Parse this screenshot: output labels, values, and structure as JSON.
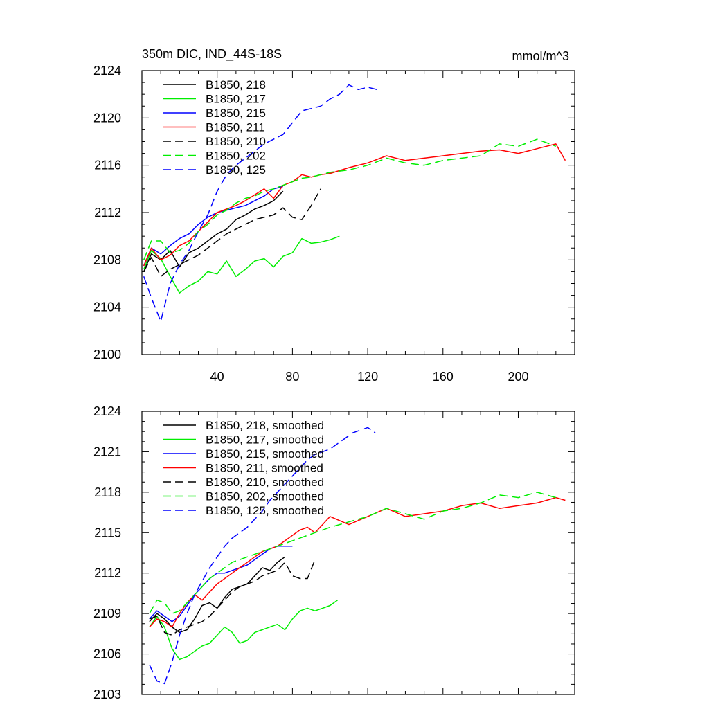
{
  "chart_data": [
    {
      "type": "line",
      "title_left": "350m DIC, IND_44S-18S",
      "title_right": "mmol/m^3",
      "xlim": [
        0,
        230
      ],
      "ylim": [
        2100,
        2124
      ],
      "x_ticks": [
        40,
        80,
        120,
        160,
        200
      ],
      "y_ticks": [
        2100,
        2104,
        2108,
        2112,
        2116,
        2120,
        2124
      ],
      "legend_position": "top-left",
      "grid": false,
      "series": [
        {
          "name": "B1850, 218",
          "color": "#000000",
          "dash": "solid",
          "x": [
            1,
            5,
            10,
            15,
            20,
            25,
            30,
            35,
            40,
            45,
            50,
            55,
            60,
            65,
            70,
            75
          ],
          "y": [
            2107.0,
            2108.5,
            2108.0,
            2108.8,
            2107.4,
            2108.6,
            2109.0,
            2109.6,
            2110.2,
            2110.6,
            2111.4,
            2111.8,
            2112.3,
            2112.6,
            2113.0,
            2113.8
          ]
        },
        {
          "name": "B1850, 217",
          "color": "#00ee00",
          "dash": "solid",
          "x": [
            1,
            5,
            10,
            15,
            20,
            25,
            30,
            35,
            40,
            45,
            50,
            55,
            60,
            65,
            70,
            75,
            80,
            85,
            90,
            95,
            100,
            105
          ],
          "y": [
            2107.2,
            2108.8,
            2108.1,
            2106.6,
            2105.2,
            2105.8,
            2106.2,
            2107.0,
            2106.8,
            2107.9,
            2106.6,
            2107.2,
            2107.9,
            2108.1,
            2107.4,
            2108.3,
            2108.6,
            2109.8,
            2109.4,
            2109.5,
            2109.7,
            2110.0
          ]
        },
        {
          "name": "B1850, 215",
          "color": "#0000ff",
          "dash": "solid",
          "x": [
            1,
            5,
            10,
            15,
            20,
            25,
            30,
            35,
            40,
            45,
            50,
            55,
            60,
            65,
            70,
            75
          ],
          "y": [
            2107.5,
            2109.0,
            2108.5,
            2109.2,
            2109.8,
            2110.2,
            2111.0,
            2111.6,
            2112.0,
            2112.2,
            2112.4,
            2112.6,
            2113.0,
            2113.4,
            2114.0,
            2114.2
          ]
        },
        {
          "name": "B1850, 211",
          "color": "#ff0000",
          "dash": "solid",
          "x": [
            1,
            5,
            10,
            15,
            20,
            25,
            30,
            35,
            40,
            45,
            50,
            55,
            60,
            65,
            70,
            75,
            80,
            85,
            90,
            95,
            100,
            110,
            120,
            130,
            140,
            150,
            160,
            170,
            180,
            190,
            200,
            210,
            220,
            225
          ],
          "y": [
            2107.5,
            2109.0,
            2108.0,
            2108.4,
            2109.2,
            2109.6,
            2110.4,
            2111.2,
            2112.0,
            2112.3,
            2112.6,
            2113.0,
            2113.5,
            2114.0,
            2113.2,
            2114.3,
            2114.6,
            2115.2,
            2115.0,
            2115.2,
            2115.3,
            2115.8,
            2116.2,
            2116.8,
            2116.4,
            2116.6,
            2116.8,
            2117.0,
            2117.2,
            2117.3,
            2117.0,
            2117.4,
            2117.8,
            2116.4
          ]
        },
        {
          "name": "B1850, 210",
          "color": "#000000",
          "dash": "dashed",
          "x": [
            1,
            5,
            10,
            15,
            20,
            25,
            30,
            35,
            40,
            45,
            50,
            55,
            60,
            65,
            70,
            75,
            80,
            85,
            90,
            95
          ],
          "y": [
            2107.0,
            2108.2,
            2106.6,
            2107.2,
            2107.6,
            2108.0,
            2108.4,
            2109.0,
            2109.6,
            2110.2,
            2110.6,
            2111.0,
            2111.4,
            2111.6,
            2111.8,
            2112.4,
            2111.6,
            2111.4,
            2112.6,
            2114.0
          ]
        },
        {
          "name": "B1850, 202",
          "color": "#00ee00",
          "dash": "dashed",
          "x": [
            1,
            5,
            10,
            15,
            20,
            25,
            30,
            35,
            40,
            45,
            50,
            55,
            60,
            65,
            70,
            75,
            80,
            85,
            90,
            95,
            100,
            110,
            120,
            130,
            140,
            150,
            160,
            170,
            180,
            190,
            200,
            210,
            220
          ],
          "y": [
            2108.0,
            2109.6,
            2109.6,
            2108.6,
            2108.8,
            2109.4,
            2110.4,
            2111.0,
            2111.8,
            2112.2,
            2112.8,
            2113.2,
            2113.4,
            2113.8,
            2114.0,
            2114.3,
            2114.6,
            2114.9,
            2115.0,
            2115.2,
            2115.4,
            2115.6,
            2116.0,
            2116.6,
            2116.2,
            2116.0,
            2116.4,
            2116.6,
            2116.8,
            2117.8,
            2117.6,
            2118.2,
            2117.6
          ]
        },
        {
          "name": "B1850, 125",
          "color": "#0000ff",
          "dash": "dashed",
          "x": [
            1,
            5,
            10,
            15,
            20,
            25,
            30,
            35,
            40,
            45,
            50,
            55,
            60,
            65,
            70,
            75,
            80,
            85,
            90,
            95,
            100,
            105,
            110,
            115,
            120,
            125
          ],
          "y": [
            2106.6,
            2104.8,
            2102.8,
            2106.0,
            2107.6,
            2108.8,
            2110.4,
            2111.8,
            2113.8,
            2115.2,
            2116.0,
            2116.6,
            2117.2,
            2117.8,
            2118.2,
            2118.6,
            2119.6,
            2120.6,
            2120.8,
            2121.0,
            2121.6,
            2122.0,
            2122.8,
            2122.4,
            2122.6,
            2122.4
          ]
        }
      ]
    },
    {
      "type": "line",
      "xlim": [
        0,
        230
      ],
      "ylim": [
        2103,
        2124
      ],
      "y_ticks": [
        2103,
        2106,
        2109,
        2112,
        2115,
        2118,
        2121,
        2124
      ],
      "legend_position": "top-left",
      "grid": false,
      "series": [
        {
          "name": "B1850, 218, smoothed",
          "color": "#000000",
          "dash": "solid",
          "x": [
            4,
            8,
            12,
            16,
            20,
            24,
            28,
            32,
            36,
            40,
            44,
            48,
            52,
            56,
            60,
            64,
            68,
            72,
            76
          ],
          "y": [
            2108.4,
            2109.0,
            2108.6,
            2108.0,
            2107.6,
            2107.8,
            2108.6,
            2109.6,
            2109.8,
            2109.4,
            2110.2,
            2110.8,
            2111.0,
            2111.2,
            2111.8,
            2112.4,
            2112.2,
            2112.8,
            2113.2
          ]
        },
        {
          "name": "B1850, 217, smoothed",
          "color": "#00ee00",
          "dash": "solid",
          "x": [
            4,
            8,
            12,
            16,
            20,
            24,
            28,
            32,
            36,
            40,
            44,
            48,
            52,
            56,
            60,
            64,
            68,
            72,
            76,
            80,
            84,
            88,
            92,
            96,
            100,
            104
          ],
          "y": [
            2108.0,
            2108.8,
            2108.0,
            2106.4,
            2105.6,
            2105.8,
            2106.2,
            2106.6,
            2106.8,
            2107.4,
            2108.0,
            2107.6,
            2106.8,
            2107.0,
            2107.6,
            2107.8,
            2108.0,
            2108.2,
            2107.8,
            2108.6,
            2109.2,
            2109.4,
            2109.2,
            2109.4,
            2109.6,
            2110.0
          ]
        },
        {
          "name": "B1850, 215, smoothed",
          "color": "#0000ff",
          "dash": "solid",
          "x": [
            4,
            8,
            12,
            16,
            20,
            24,
            28,
            32,
            36,
            40,
            44,
            48,
            52,
            56,
            60,
            64,
            68,
            72,
            76,
            80
          ],
          "y": [
            2108.6,
            2109.2,
            2108.8,
            2108.4,
            2108.8,
            2109.6,
            2110.4,
            2111.0,
            2111.6,
            2112.0,
            2112.0,
            2112.2,
            2112.4,
            2112.6,
            2113.0,
            2113.4,
            2113.8,
            2114.0,
            2114.0,
            2114.0
          ]
        },
        {
          "name": "B1850, 211, smoothed",
          "color": "#ff0000",
          "dash": "solid",
          "x": [
            4,
            8,
            12,
            16,
            20,
            24,
            28,
            32,
            36,
            40,
            44,
            48,
            52,
            56,
            60,
            64,
            68,
            72,
            76,
            80,
            84,
            88,
            92,
            96,
            100,
            110,
            120,
            130,
            140,
            150,
            160,
            170,
            180,
            190,
            200,
            210,
            220,
            225
          ],
          "y": [
            2108.0,
            2108.6,
            2108.4,
            2108.0,
            2109.0,
            2109.8,
            2110.4,
            2110.0,
            2110.6,
            2111.2,
            2111.6,
            2112.0,
            2112.4,
            2112.8,
            2113.2,
            2113.6,
            2113.8,
            2114.0,
            2114.4,
            2114.8,
            2115.2,
            2115.4,
            2115.0,
            2115.6,
            2116.2,
            2115.6,
            2116.2,
            2116.8,
            2116.2,
            2116.4,
            2116.6,
            2117.0,
            2117.2,
            2116.8,
            2117.0,
            2117.2,
            2117.6,
            2117.4
          ]
        },
        {
          "name": "B1850, 210, smoothed",
          "color": "#000000",
          "dash": "dashed",
          "x": [
            4,
            8,
            12,
            16,
            20,
            24,
            28,
            32,
            36,
            40,
            44,
            48,
            52,
            56,
            60,
            64,
            68,
            72,
            76,
            80,
            84,
            88,
            92
          ],
          "y": [
            2108.6,
            2108.8,
            2107.6,
            2107.4,
            2107.8,
            2108.0,
            2108.2,
            2108.4,
            2108.8,
            2109.4,
            2110.0,
            2110.6,
            2111.0,
            2111.2,
            2111.4,
            2111.8,
            2112.0,
            2112.2,
            2112.8,
            2111.8,
            2111.6,
            2111.6,
            2113.0
          ]
        },
        {
          "name": "B1850, 202, smoothed",
          "color": "#00ee00",
          "dash": "dashed",
          "x": [
            4,
            8,
            12,
            16,
            20,
            24,
            28,
            32,
            36,
            40,
            44,
            48,
            52,
            56,
            60,
            64,
            68,
            72,
            76,
            80,
            84,
            88,
            92,
            96,
            100,
            110,
            120,
            130,
            140,
            150,
            160,
            170,
            180,
            190,
            200,
            210,
            220
          ],
          "y": [
            2109.0,
            2110.0,
            2109.8,
            2109.0,
            2109.2,
            2109.8,
            2110.4,
            2111.0,
            2111.6,
            2112.0,
            2112.4,
            2112.8,
            2113.0,
            2113.2,
            2113.4,
            2113.6,
            2113.8,
            2114.0,
            2114.2,
            2114.4,
            2114.6,
            2114.8,
            2115.0,
            2115.2,
            2115.4,
            2115.8,
            2116.2,
            2116.8,
            2116.4,
            2116.0,
            2116.6,
            2116.8,
            2117.2,
            2117.8,
            2117.6,
            2118.0,
            2117.6
          ]
        },
        {
          "name": "B1850, 125, smoothed",
          "color": "#0000ff",
          "dash": "dashed",
          "x": [
            4,
            8,
            12,
            16,
            20,
            24,
            28,
            32,
            36,
            40,
            44,
            48,
            52,
            56,
            60,
            64,
            68,
            72,
            76,
            80,
            84,
            88,
            92,
            96,
            100,
            104,
            108,
            112,
            116,
            120,
            124
          ],
          "y": [
            2105.2,
            2104.0,
            2103.8,
            2105.4,
            2107.4,
            2109.0,
            2110.4,
            2111.4,
            2112.4,
            2113.2,
            2114.0,
            2114.6,
            2115.0,
            2115.4,
            2116.0,
            2116.6,
            2117.4,
            2118.0,
            2118.6,
            2119.2,
            2119.8,
            2120.4,
            2120.8,
            2121.0,
            2121.2,
            2121.6,
            2122.0,
            2122.4,
            2122.6,
            2122.8,
            2122.4
          ]
        }
      ]
    }
  ]
}
